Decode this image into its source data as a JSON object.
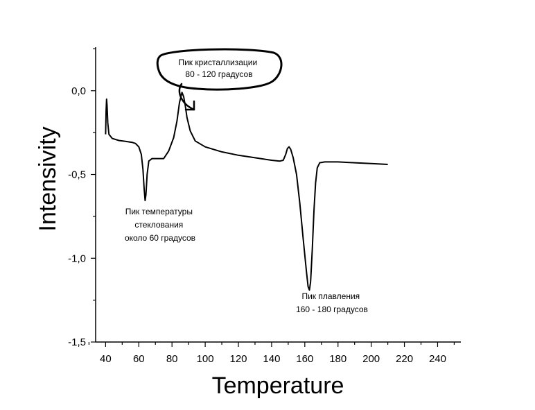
{
  "chart_data": {
    "type": "line",
    "title": "",
    "xlabel": "Temperature",
    "ylabel": "Intensivity",
    "xlim": [
      34,
      254
    ],
    "ylim": [
      -1.5,
      0.26
    ],
    "x_ticks": [
      40,
      60,
      80,
      100,
      120,
      140,
      160,
      180,
      200,
      220,
      240
    ],
    "x_tick_labels": [
      "40",
      "60",
      "80",
      "100",
      "120",
      "140",
      "160",
      "180",
      "200",
      "220",
      "240"
    ],
    "y_ticks": [
      0.0,
      -0.5,
      -1.0,
      -1.5
    ],
    "y_tick_labels": [
      "0,0",
      "-0,5",
      "-1,0",
      "-1,5"
    ],
    "grid": false,
    "series": [
      {
        "color": "#000000",
        "points": [
          [
            40.0,
            -0.26
          ],
          [
            40.3,
            -0.12
          ],
          [
            40.6,
            -0.05
          ],
          [
            40.9,
            -0.09
          ],
          [
            41.3,
            -0.19
          ],
          [
            42,
            -0.26
          ],
          [
            44,
            -0.285
          ],
          [
            48,
            -0.297
          ],
          [
            52,
            -0.302
          ],
          [
            56,
            -0.308
          ],
          [
            58,
            -0.315
          ],
          [
            60,
            -0.335
          ],
          [
            61.5,
            -0.38
          ],
          [
            62.5,
            -0.47
          ],
          [
            63.2,
            -0.58
          ],
          [
            63.8,
            -0.655
          ],
          [
            64.3,
            -0.62
          ],
          [
            65,
            -0.5
          ],
          [
            66,
            -0.42
          ],
          [
            68,
            -0.405
          ],
          [
            72,
            -0.405
          ],
          [
            75,
            -0.405
          ],
          [
            78,
            -0.36
          ],
          [
            81,
            -0.28
          ],
          [
            83,
            -0.18
          ],
          [
            84.5,
            -0.07
          ],
          [
            86,
            -0.01
          ],
          [
            87,
            -0.035
          ],
          [
            88,
            -0.09
          ],
          [
            89,
            -0.16
          ],
          [
            91,
            -0.24
          ],
          [
            94,
            -0.3
          ],
          [
            100,
            -0.335
          ],
          [
            110,
            -0.365
          ],
          [
            120,
            -0.385
          ],
          [
            130,
            -0.4
          ],
          [
            140,
            -0.415
          ],
          [
            145,
            -0.42
          ],
          [
            147,
            -0.415
          ],
          [
            148.5,
            -0.38
          ],
          [
            149.5,
            -0.345
          ],
          [
            150.5,
            -0.335
          ],
          [
            151.5,
            -0.35
          ],
          [
            153,
            -0.4
          ],
          [
            155,
            -0.5
          ],
          [
            157,
            -0.67
          ],
          [
            159,
            -0.88
          ],
          [
            161,
            -1.08
          ],
          [
            162,
            -1.17
          ],
          [
            162.8,
            -1.19
          ],
          [
            163.5,
            -1.14
          ],
          [
            164.5,
            -0.95
          ],
          [
            165.5,
            -0.72
          ],
          [
            166.5,
            -0.55
          ],
          [
            167.5,
            -0.46
          ],
          [
            169,
            -0.43
          ],
          [
            172,
            -0.425
          ],
          [
            180,
            -0.425
          ],
          [
            190,
            -0.43
          ],
          [
            200,
            -0.435
          ],
          [
            210,
            -0.44
          ]
        ]
      }
    ],
    "annotations": [
      {
        "lines": [
          "Пик кристаллизации",
          "80 - 120 градусов"
        ]
      },
      {
        "lines": [
          "Пик температуры",
          "стеклования",
          "около 60 градусов"
        ]
      },
      {
        "lines": [
          "Пик плавления",
          "160 - 180 градусов"
        ]
      }
    ]
  }
}
